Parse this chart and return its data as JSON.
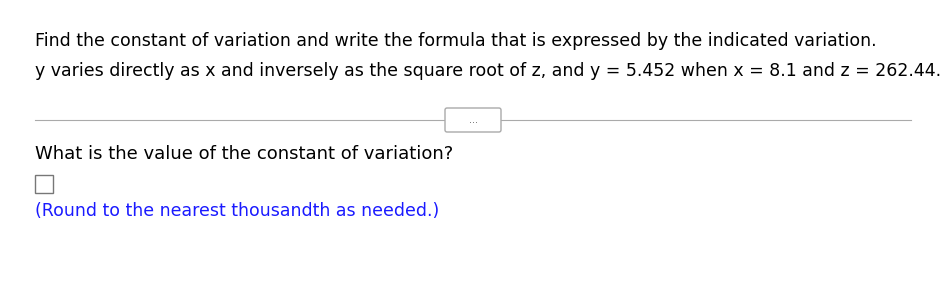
{
  "line1": "Find the constant of variation and write the formula that is expressed by the indicated variation.",
  "line2": "y varies directly as x and inversely as the square root of z, and y = 5.452 when x = 8.1 and z = 262.44.",
  "dots_text": "...",
  "question": "What is the value of the constant of variation?",
  "note": "(Round to the nearest thousandth as needed.)",
  "bg_color": "#ffffff",
  "text_color": "#000000",
  "blue_color": "#1a1aff",
  "line1_fontsize": 12.5,
  "line2_fontsize": 12.5,
  "question_fontsize": 13,
  "note_fontsize": 12.5
}
